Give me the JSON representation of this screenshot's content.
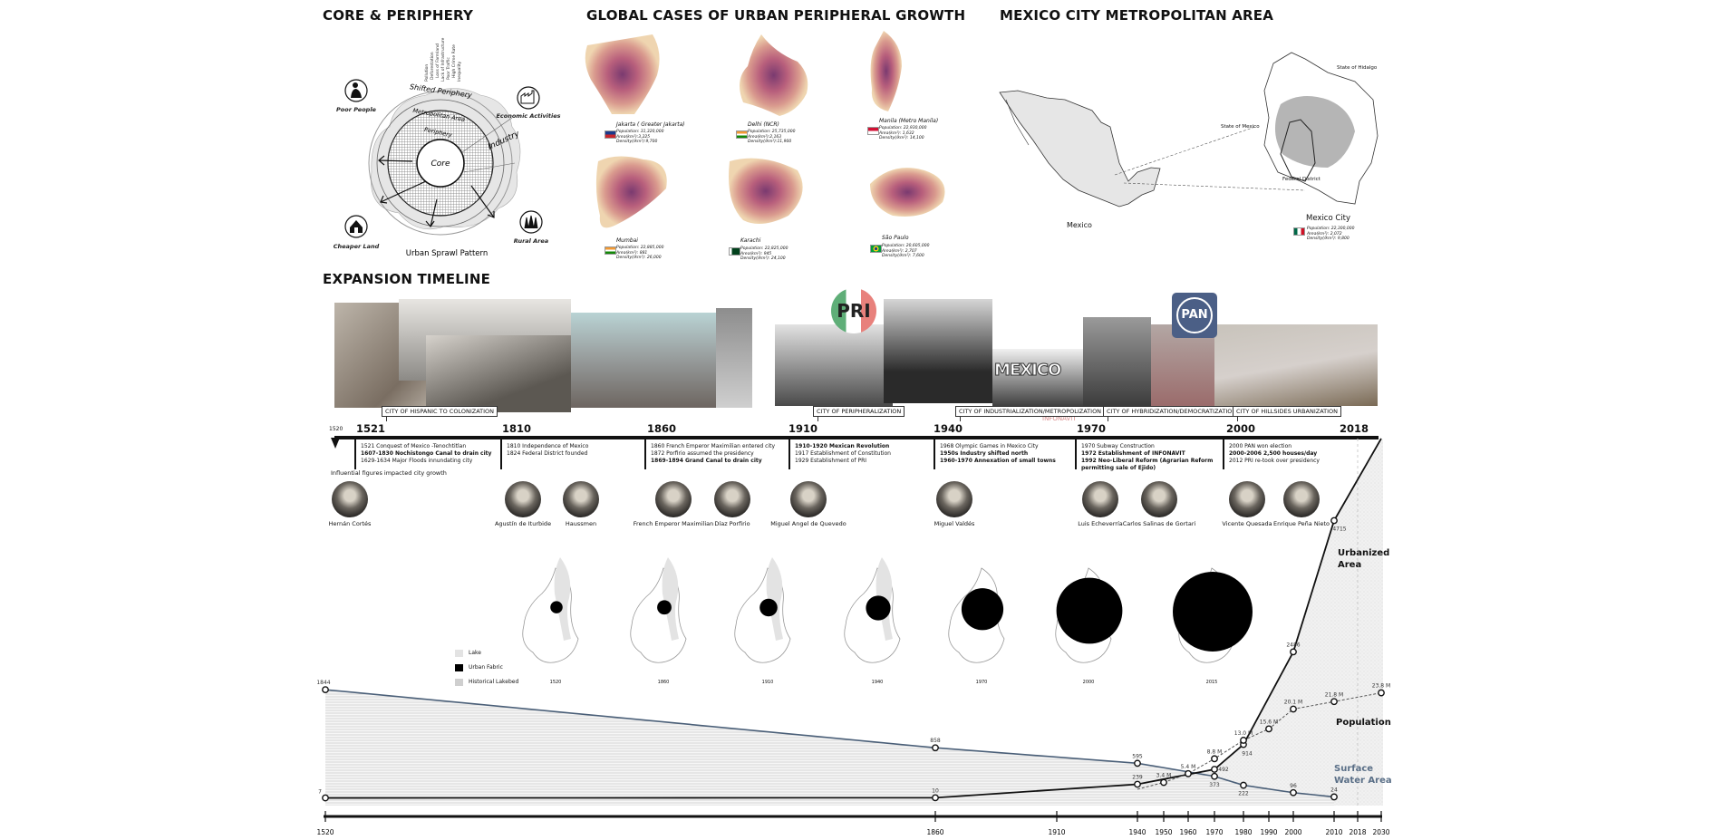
{
  "core_periphery": {
    "title": "CORE & PERIPHERY",
    "rings": {
      "shifted": "Shifted Periphery",
      "metro": "Metropolitan Area",
      "periphery": "Periphery",
      "industry": "Industry",
      "core": "Core"
    },
    "issues": [
      "Pollution",
      "Deforestation",
      "Loss of Farmland",
      "Lack of Infrastructure",
      "Poor Traffic",
      "High Crime Rate",
      "Inequality"
    ],
    "icons": [
      {
        "label": "Poor People",
        "icon": "person-icon"
      },
      {
        "label": "Economic Activities",
        "icon": "factory-icon"
      },
      {
        "label": "Cheaper Land",
        "icon": "house-icon"
      },
      {
        "label": "Rural Area",
        "icon": "forest-icon"
      }
    ],
    "caption": "Urban Sprawl Pattern"
  },
  "global_cases": {
    "title": "GLOBAL CASES OF URBAN PERIPHERAL GROWTH",
    "cities": [
      {
        "name": "Jakarta ( Greater Jakarta)",
        "population": "Population: 31,320,000",
        "area": "Area(km²):3,225",
        "density": "Density(/km²):9,700"
      },
      {
        "name": "Delhi (NCR)",
        "population": "Population: 25,735,000",
        "area": "Area(km²):2,163",
        "density": "Density(/km²):11,900"
      },
      {
        "name": "Manila (Metro Manila)",
        "population": "Population: 22,930,000",
        "area": "Area(km²): 1,632",
        "density": "Density(/km²): 14,100"
      },
      {
        "name": "Mumbai",
        "population": "Population: 22,885,000",
        "area": "Area(km²): 881",
        "density": "Density(/km²): 26,000"
      },
      {
        "name": "Karachi",
        "population": "Population: 22,825,000",
        "area": "Area(km²): 945",
        "density": "Density(/km²): 24,100"
      },
      {
        "name": "São Paulo",
        "population": "Population: 20,605,000",
        "area": "Area(km²): 2,707",
        "density": "Density(/km²): 7,600"
      }
    ]
  },
  "mexico": {
    "title": "MEXICO CITY METROPOLITAN AREA",
    "country_label": "Mexico",
    "state_hidalgo": "State of Hidalgo",
    "state_mexico": "State of Mexico",
    "federal_district": "Federal District",
    "city_label": "Mexico City",
    "population": "Population: 22,300,000",
    "area": "Area(km²): 2,072",
    "density": "Density(/km²): 9,800"
  },
  "timeline": {
    "title": "EXPANSION TIMELINE",
    "logos": [
      "PRI",
      "PAN",
      "MEXICO",
      "INFONAVIT"
    ],
    "eras": [
      "CITY OF HISPANIC TO COLONIZATION",
      "CITY OF PERIPHERALIZATION",
      "CITY OF INDUSTRIALIZATION/METROPOLIZATION",
      "CITY OF HYBRIDIZATION/DEMOCRATIZATION",
      "CITY OF HILLSIDES URBANIZATION"
    ],
    "start_year": "1520",
    "years": [
      "1521",
      "1810",
      "1860",
      "1910",
      "1940",
      "1970",
      "2000",
      "2018"
    ],
    "events": [
      [
        {
          "t": "1521 Conquest of Mexico -Tenochtitlan",
          "b": false
        },
        {
          "t": "1607-1830 Nochistongo Canal to drain city",
          "b": true
        },
        {
          "t": "1629-1634 Major Floods innundating city",
          "b": false
        }
      ],
      [
        {
          "t": "1810 Independence of Mexico",
          "b": false
        },
        {
          "t": "1824 Federal District founded",
          "b": false
        }
      ],
      [
        {
          "t": "1860 French Emperor Maximilian entered city",
          "b": false
        },
        {
          "t": "1872 Porfirio assumed the presidency",
          "b": false
        },
        {
          "t": "1869-1894 Grand Canal to drain city",
          "b": true
        }
      ],
      [
        {
          "t": "1910-1920 Mexican Revolution",
          "b": true
        },
        {
          "t": "1917 Establishment of Constitution",
          "b": false
        },
        {
          "t": "1929 Establishment of PRI",
          "b": false
        }
      ],
      [
        {
          "t": "1968 Olympic Games in Mexico City",
          "b": false
        },
        {
          "t": "1950s Industry shifted north",
          "b": true
        },
        {
          "t": "1960-1970 Annexation of small towns",
          "b": true
        }
      ],
      [
        {
          "t": "1970 Subway Construction",
          "b": false
        },
        {
          "t": "1972 Establishment of INFONAVIT",
          "b": true
        },
        {
          "t": "1992 Neo-Liberal Reform (Agrarian Reform",
          "b": true
        },
        {
          "t": "permitting sale of Ejido)",
          "b": true
        }
      ],
      [
        {
          "t": "2000 PAN won election",
          "b": false
        },
        {
          "t": "2000-2006 2,500 houses/day",
          "b": true
        },
        {
          "t": "2012 PRI re-took over presidency",
          "b": false
        }
      ]
    ],
    "figures_caption": "Influential figures impacted city growth",
    "figures": [
      "Hernán Cortés",
      "Agustín de Iturbide",
      "Haussmen",
      "French Emperor Maximilian",
      "Díaz Porfirio",
      "Miguel Angel de Quevedo",
      "Miguel Valdés",
      "Luis Echeverría",
      "Carlos Salinas de Gortari",
      "Vicente Quesada",
      "Enrique Peña Nieto"
    ]
  },
  "maps": {
    "legend": [
      "Lake",
      "Urban Fabric",
      "Historical Lakebed"
    ],
    "legend_colors": [
      "#e3e3e3",
      "#000000",
      "#cfcfcf"
    ],
    "years": [
      "1520",
      "1860",
      "1910",
      "1940",
      "1970",
      "2000",
      "2015"
    ]
  },
  "chart_data": {
    "type": "line",
    "x_ticks": [
      "1520",
      "1860",
      "1910",
      "1940",
      "1950",
      "1960",
      "1970",
      "1980",
      "1990",
      "2000",
      "2010",
      "2018",
      "2030"
    ],
    "series": [
      {
        "name": "Urbanized Area",
        "color": "#111111",
        "points": [
          [
            1520,
            7
          ],
          [
            1860,
            10
          ],
          [
            1940,
            239
          ],
          [
            1970,
            492
          ],
          [
            1980,
            914
          ],
          [
            2000,
            2486
          ],
          [
            2010,
            4715
          ]
        ],
        "labels": [
          "7",
          "10",
          "239",
          "492",
          "914",
          "2486",
          "4715"
        ]
      },
      {
        "name": "Surface Water Area",
        "color": "#4a5f78",
        "points": [
          [
            1520,
            1844
          ],
          [
            1860,
            858
          ],
          [
            1940,
            595
          ],
          [
            1970,
            373
          ],
          [
            1980,
            222
          ],
          [
            2000,
            96
          ],
          [
            2010,
            24
          ]
        ],
        "labels": [
          "1844",
          "858",
          "595",
          "373",
          "222",
          "96",
          "24"
        ]
      },
      {
        "name": "Population",
        "color": "#555555",
        "dashed": true,
        "points": [
          [
            1950,
            3.4
          ],
          [
            1960,
            5.4
          ],
          [
            1970,
            8.8
          ],
          [
            1980,
            13.0
          ],
          [
            1990,
            15.6
          ],
          [
            2000,
            20.1
          ],
          [
            2010,
            21.8
          ],
          [
            2030,
            23.8
          ]
        ],
        "labels": [
          "3.4 M",
          "5.4 M",
          "8.8 M",
          "13.0 M",
          "15.6 M",
          "20.1 M",
          "21.8 M",
          "23.8 M"
        ]
      }
    ],
    "series_labels": {
      "urban": [
        "Urbanized",
        "Area"
      ],
      "population": "Population",
      "water": [
        "Surface",
        "Water Area"
      ]
    }
  }
}
